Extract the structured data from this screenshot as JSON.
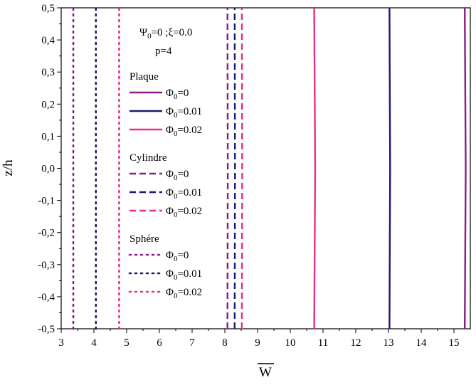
{
  "chart_data": {
    "type": "line",
    "xlabel": "W",
    "xlabel_overline": true,
    "ylabel": "z/h",
    "xlim": [
      3,
      15.5
    ],
    "ylim": [
      -0.5,
      0.5
    ],
    "xticks": [
      3,
      4,
      5,
      6,
      7,
      8,
      9,
      10,
      11,
      12,
      13,
      14,
      15
    ],
    "yticks": [
      0.5,
      0.4,
      0.3,
      0.2,
      0.1,
      0.0,
      -0.1,
      -0.2,
      -0.3,
      -0.4,
      -0.5
    ],
    "ytick_labels": [
      "0,5",
      "0,4",
      "0,3",
      "0,2",
      "0,1",
      "0,0",
      "-0,1",
      "-0,2",
      "-0,3",
      "-0,4",
      "-0,5"
    ],
    "grid": false,
    "legend_position": "upper-left inside plot",
    "annotations": {
      "line1_psi": "Ψ",
      "line1_psi_sub": "0",
      "line1_rest": "=0 ;ξ=0.0",
      "line2": "p=4"
    },
    "groups": [
      {
        "name": "Plaque",
        "style": "solid",
        "series": [
          {
            "name_main": "Φ",
            "name_sub": "0",
            "name_val": "=0",
            "color": "#8b1a8b",
            "z": [
              -0.5,
              0.0,
              0.5
            ],
            "w": [
              15.33,
              15.36,
              15.33
            ]
          },
          {
            "name_main": "Φ",
            "name_sub": "0",
            "name_val": "=0.01",
            "color": "#1a1a7a",
            "z": [
              -0.5,
              0.0,
              0.5
            ],
            "w": [
              13.03,
              13.05,
              13.03
            ]
          },
          {
            "name_main": "Φ",
            "name_sub": "0",
            "name_val": "=0.02",
            "color": "#e62e8a",
            "z": [
              -0.5,
              0.0,
              0.5
            ],
            "w": [
              10.73,
              10.76,
              10.73
            ]
          }
        ]
      },
      {
        "name": "Cylindre",
        "style": "dashed",
        "series": [
          {
            "name_main": "Φ",
            "name_sub": "0",
            "name_val": "=0",
            "color": "#8b1a8b",
            "z": [
              -0.5,
              0.0,
              0.5
            ],
            "w": [
              8.08,
              8.09,
              8.08
            ]
          },
          {
            "name_main": "Φ",
            "name_sub": "0",
            "name_val": "=0.01",
            "color": "#1a1a7a",
            "z": [
              -0.5,
              0.0,
              0.5
            ],
            "w": [
              8.3,
              8.31,
              8.3
            ]
          },
          {
            "name_main": "Φ",
            "name_sub": "0",
            "name_val": "=0.02",
            "color": "#e62e8a",
            "z": [
              -0.5,
              0.0,
              0.5
            ],
            "w": [
              8.52,
              8.53,
              8.52
            ]
          }
        ]
      },
      {
        "name": "Sphére",
        "style": "dotted",
        "series": [
          {
            "name_main": "Φ",
            "name_sub": "0",
            "name_val": "=0",
            "color": "#8b1a8b",
            "z": [
              -0.5,
              0.0,
              0.5
            ],
            "w": [
              3.37,
              3.37,
              3.37
            ]
          },
          {
            "name_main": "Φ",
            "name_sub": "0",
            "name_val": "=0.01",
            "color": "#1a1a7a",
            "z": [
              -0.5,
              0.0,
              0.5
            ],
            "w": [
              4.06,
              4.06,
              4.06
            ]
          },
          {
            "name_main": "Φ",
            "name_sub": "0",
            "name_val": "=0.02",
            "color": "#e62e8a",
            "z": [
              -0.5,
              0.0,
              0.5
            ],
            "w": [
              4.77,
              4.77,
              4.77
            ]
          }
        ]
      }
    ]
  }
}
